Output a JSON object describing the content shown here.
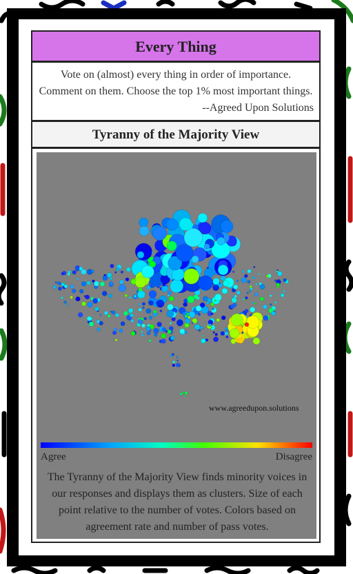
{
  "header": {
    "title": "Every Thing"
  },
  "intro": {
    "text": "Vote on (almost) every thing in order of importance. Comment on them. Choose the top 1% most important things.",
    "attribution": "--Agreed Upon Solutions"
  },
  "section": {
    "title": "Tyranny of the Majority View"
  },
  "plot": {
    "watermark": "www.agreedupon.solutions",
    "legend_low": "Agree",
    "legend_high": "Disagree"
  },
  "caption": "The Tyranny of the Majority View finds minority voices in our responses and displays them as clusters. Size of each point relative to the number of votes. Colors based on agreement rate and number of pass votes."
}
